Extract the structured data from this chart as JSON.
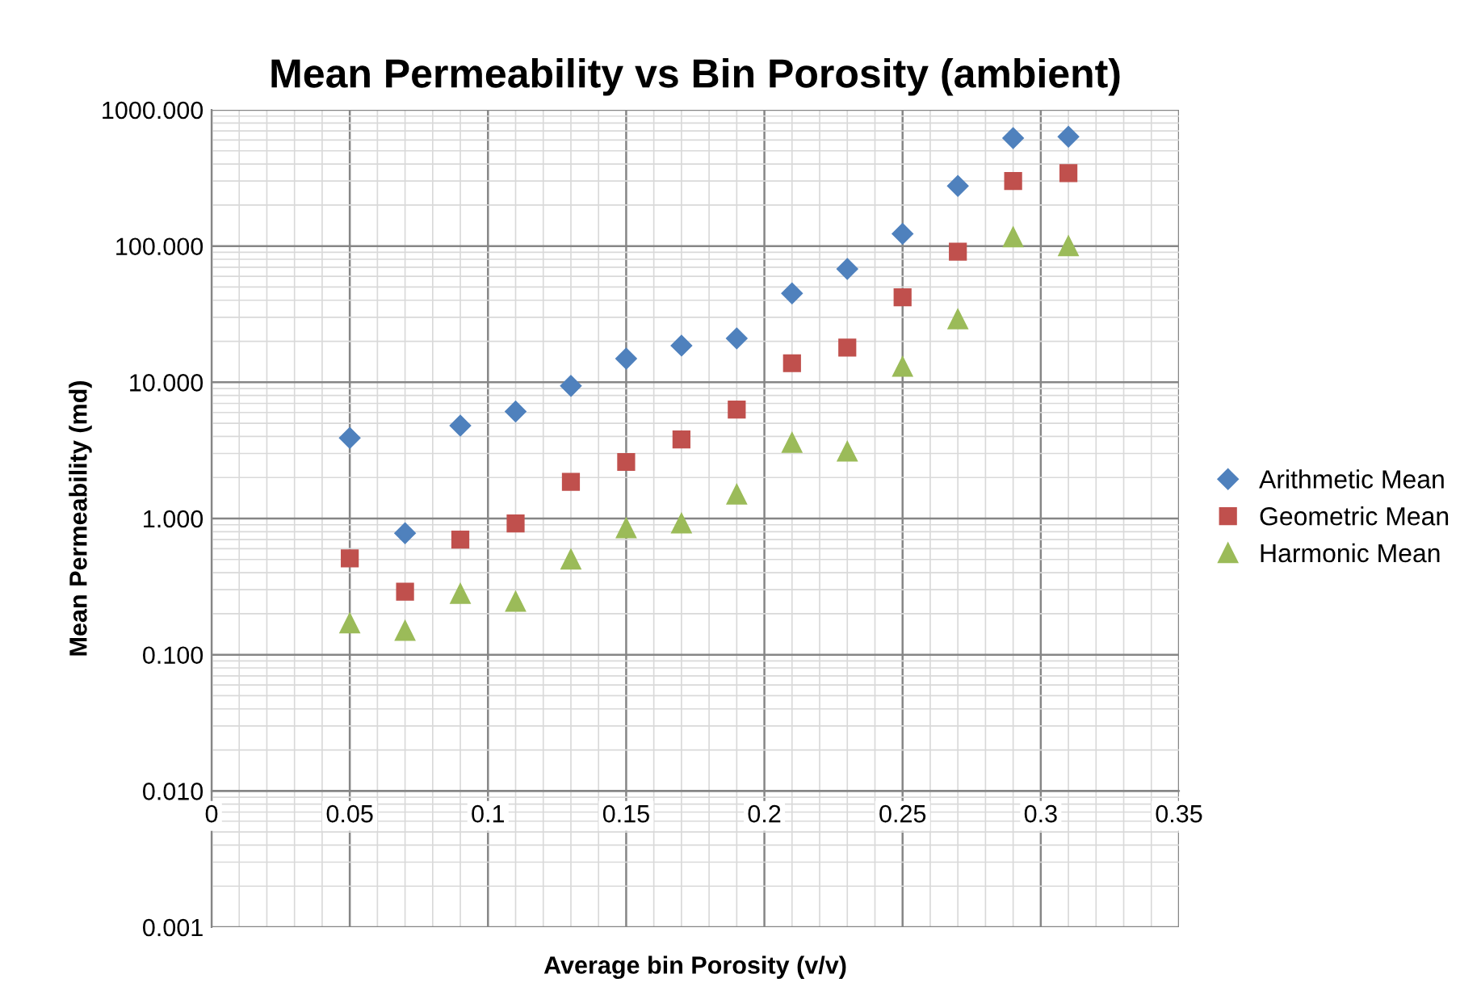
{
  "chart_data": {
    "type": "scatter",
    "title": "Mean Permeability vs Bin Porosity (ambient)",
    "xlabel": "Average bin Porosity (v/v)",
    "ylabel": "Mean Permeability (md)",
    "x": [
      0.05,
      0.07,
      0.09,
      0.11,
      0.13,
      0.15,
      0.17,
      0.19,
      0.21,
      0.23,
      0.25,
      0.27,
      0.29,
      0.31
    ],
    "series": [
      {
        "name": "Arithmetic Mean",
        "color": "#4f81bd",
        "marker": "diamond",
        "values": [
          3.9,
          0.78,
          4.8,
          6.1,
          9.4,
          14.9,
          18.6,
          21,
          45,
          68,
          123,
          276,
          620,
          635
        ]
      },
      {
        "name": "Geometric Mean",
        "color": "#c0504d",
        "marker": "square",
        "values": [
          0.51,
          0.29,
          0.7,
          0.92,
          1.86,
          2.6,
          3.8,
          6.3,
          13.8,
          18,
          42,
          91,
          300,
          343
        ]
      },
      {
        "name": "Harmonic Mean",
        "color": "#9bbb59",
        "marker": "triangle",
        "values": [
          0.17,
          0.15,
          0.28,
          0.245,
          0.5,
          0.85,
          0.92,
          1.5,
          3.6,
          3.1,
          13,
          29,
          116,
          100
        ]
      }
    ],
    "log": "y",
    "xlim": [
      0,
      0.35
    ],
    "xticks": [
      0,
      0.05,
      0.1,
      0.15,
      0.2,
      0.25,
      0.3,
      0.35
    ],
    "ylim": [
      0.001,
      1000
    ],
    "yticks": [
      {
        "value": 0.001,
        "label": "0.001"
      },
      {
        "value": 0.01,
        "label": "0.010"
      },
      {
        "value": 0.1,
        "label": "0.100"
      },
      {
        "value": 1,
        "label": "1.000"
      },
      {
        "value": 10,
        "label": "10.000"
      },
      {
        "value": 100,
        "label": "100.000"
      },
      {
        "value": 1000,
        "label": "1000.000"
      }
    ],
    "grid": true,
    "legend": "right"
  }
}
